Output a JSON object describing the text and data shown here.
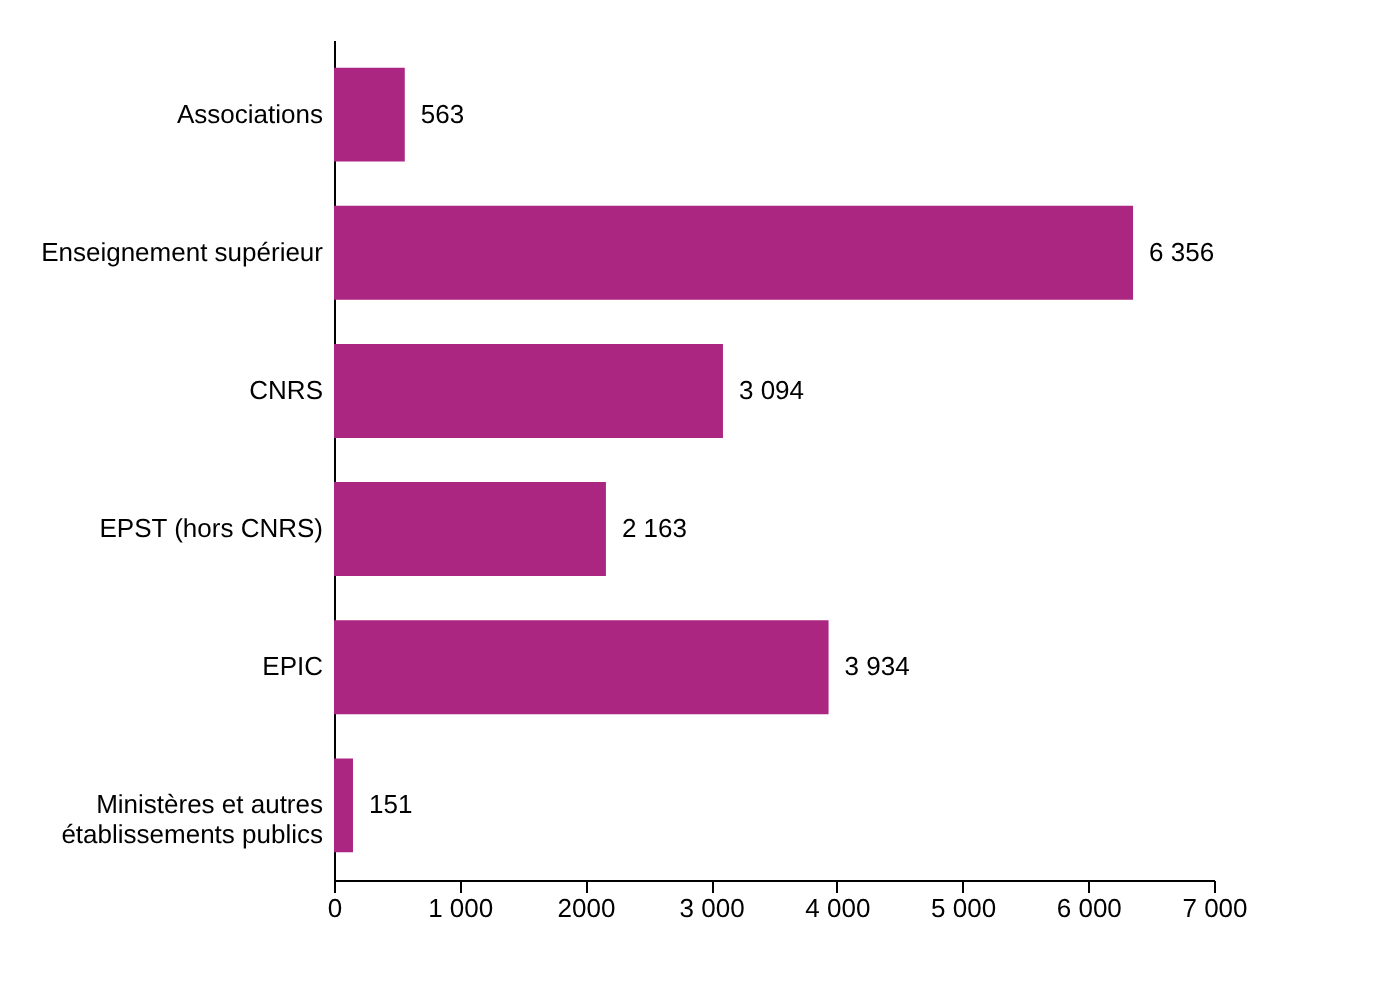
{
  "chart_data": {
    "type": "bar",
    "orientation": "horizontal",
    "categories": [
      "Associations",
      "Enseignement supérieur",
      "CNRS",
      "EPST (hors CNRS)",
      "EPIC",
      "Ministères et autres\nétablissements publics"
    ],
    "values": [
      563,
      6356,
      3094,
      2163,
      3934,
      151
    ],
    "value_labels": [
      "563",
      "6 356",
      "3 094",
      "2 163",
      "3 934",
      "151"
    ],
    "color": "#ab2680",
    "xlim": [
      0,
      7000
    ],
    "xticks": [
      0,
      {
        "value": 1000,
        "label": "1 000"
      },
      2000,
      {
        "value": 3000,
        "label": "3 000"
      },
      {
        "value": 4000,
        "label": "4 000"
      },
      {
        "value": 5000,
        "label": "5 000"
      },
      {
        "value": 6000,
        "label": "6 000"
      },
      {
        "value": 7000,
        "label": "7 000"
      }
    ],
    "grid": false
  }
}
